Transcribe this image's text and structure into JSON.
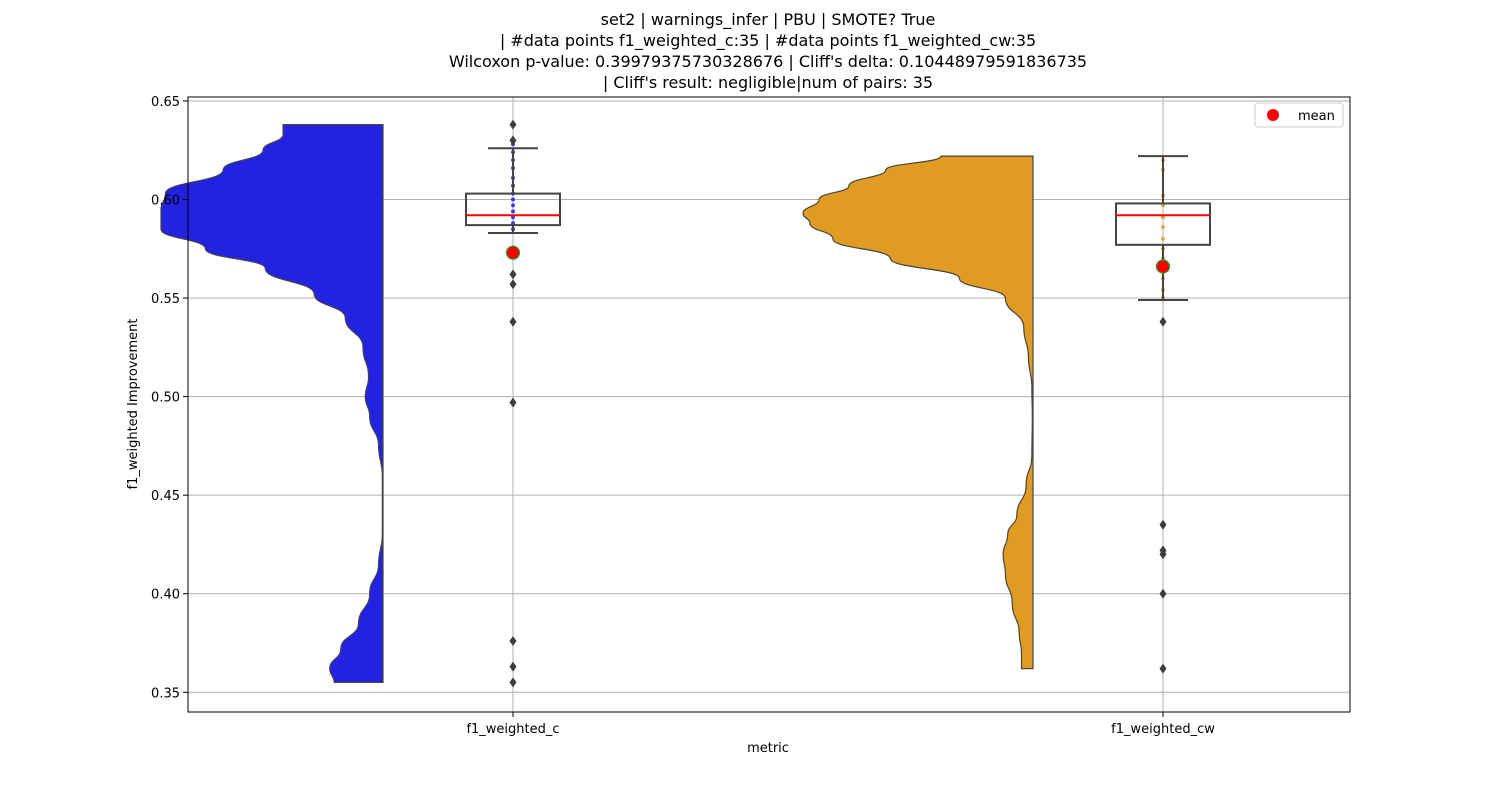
{
  "chart_data": {
    "type": "violin-box",
    "title_lines": [
      "set2 | warnings_infer | PBU | SMOTE? True",
      "| #data points f1_weighted_c:35 | #data points f1_weighted_cw:35",
      "Wilcoxon p-value: 0.39979375730328676 | Cliff's delta: 0.10448979591836735",
      "| Cliff's result: negligible|num of pairs: 35"
    ],
    "xlabel": "metric",
    "ylabel": "f1_weighted Improvement",
    "ylim": [
      0.34,
      0.652
    ],
    "yticks": [
      0.35,
      0.4,
      0.45,
      0.5,
      0.55,
      0.6,
      0.65
    ],
    "ytick_labels": [
      "0.35",
      "0.40",
      "0.45",
      "0.50",
      "0.55",
      "0.60",
      "0.65"
    ],
    "categories": [
      "f1_weighted_c",
      "f1_weighted_cw"
    ],
    "grid": true,
    "legend": {
      "position": "top-right",
      "entries": [
        {
          "label": "mean",
          "color": "#ff0000"
        }
      ]
    },
    "series": [
      {
        "name": "f1_weighted_c",
        "violin_color": "#2222e0",
        "violin_range": [
          0.355,
          0.638
        ],
        "density": [
          [
            0.355,
            0.22
          ],
          [
            0.362,
            0.24
          ],
          [
            0.372,
            0.19
          ],
          [
            0.385,
            0.11
          ],
          [
            0.4,
            0.06
          ],
          [
            0.415,
            0.02
          ],
          [
            0.43,
            0.003
          ],
          [
            0.46,
            0.003
          ],
          [
            0.475,
            0.02
          ],
          [
            0.49,
            0.06
          ],
          [
            0.5,
            0.08
          ],
          [
            0.51,
            0.065
          ],
          [
            0.525,
            0.09
          ],
          [
            0.54,
            0.17
          ],
          [
            0.552,
            0.31
          ],
          [
            0.565,
            0.53
          ],
          [
            0.575,
            0.8
          ],
          [
            0.585,
            1.0
          ],
          [
            0.595,
            1.0
          ],
          [
            0.603,
            0.98
          ],
          [
            0.615,
            0.72
          ],
          [
            0.625,
            0.54
          ],
          [
            0.633,
            0.45
          ],
          [
            0.638,
            0.45
          ]
        ],
        "box": {
          "q1": 0.587,
          "median": 0.592,
          "q3": 0.603,
          "whisker_low": 0.583,
          "whisker_high": 0.626
        },
        "mean": 0.573,
        "outliers": [
          0.638,
          0.63,
          0.562,
          0.557,
          0.538,
          0.497,
          0.376,
          0.363,
          0.355
        ],
        "strip_color": "#2222e0",
        "strip_points": [
          0.628,
          0.624,
          0.62,
          0.616,
          0.611,
          0.607,
          0.603,
          0.6,
          0.597,
          0.594,
          0.591,
          0.588,
          0.585
        ]
      },
      {
        "name": "f1_weighted_cw",
        "violin_color": "#e09c22",
        "violin_range": [
          0.362,
          0.622
        ],
        "density": [
          [
            0.362,
            0.05
          ],
          [
            0.37,
            0.05
          ],
          [
            0.38,
            0.06
          ],
          [
            0.395,
            0.09
          ],
          [
            0.41,
            0.12
          ],
          [
            0.42,
            0.13
          ],
          [
            0.43,
            0.11
          ],
          [
            0.44,
            0.07
          ],
          [
            0.455,
            0.03
          ],
          [
            0.47,
            0.005
          ],
          [
            0.49,
            0.003
          ],
          [
            0.505,
            0.005
          ],
          [
            0.52,
            0.02
          ],
          [
            0.535,
            0.04
          ],
          [
            0.55,
            0.12
          ],
          [
            0.56,
            0.32
          ],
          [
            0.57,
            0.62
          ],
          [
            0.58,
            0.87
          ],
          [
            0.588,
            0.97
          ],
          [
            0.593,
            1.0
          ],
          [
            0.6,
            0.93
          ],
          [
            0.607,
            0.8
          ],
          [
            0.615,
            0.64
          ],
          [
            0.622,
            0.4
          ]
        ],
        "box": {
          "q1": 0.577,
          "median": 0.592,
          "q3": 0.598,
          "whisker_low": 0.549,
          "whisker_high": 0.622
        },
        "mean": 0.566,
        "outliers": [
          0.538,
          0.435,
          0.422,
          0.42,
          0.4,
          0.362
        ],
        "strip_color": "#e09c22",
        "strip_points": [
          0.62,
          0.615,
          0.602,
          0.597,
          0.591,
          0.586,
          0.58,
          0.575,
          0.57,
          0.565,
          0.56,
          0.554,
          0.55
        ]
      }
    ]
  }
}
